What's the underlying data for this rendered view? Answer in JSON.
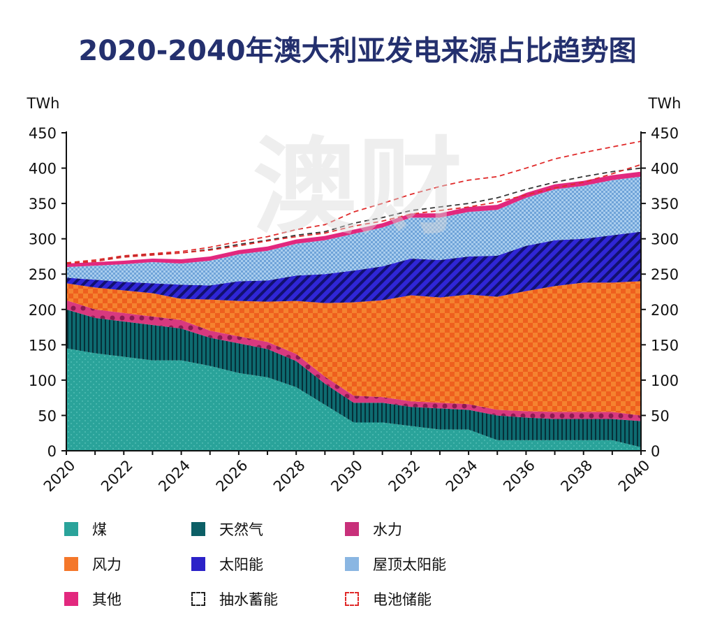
{
  "chart_data": {
    "type": "area",
    "title": "2020-2040年澳大利亚发电来源占比趋势图",
    "y_unit_left": "TWh",
    "y_unit_right": "TWh",
    "ylim": [
      0,
      450
    ],
    "y_ticks": [
      0,
      50,
      100,
      150,
      200,
      250,
      300,
      350,
      400,
      450
    ],
    "x": [
      2020,
      2021,
      2022,
      2023,
      2024,
      2025,
      2026,
      2027,
      2028,
      2029,
      2030,
      2031,
      2032,
      2033,
      2034,
      2035,
      2036,
      2037,
      2038,
      2039,
      2040
    ],
    "x_tick_labels": [
      "2020",
      "2022",
      "2024",
      "2026",
      "2028",
      "2030",
      "2032",
      "2034",
      "2036",
      "2038",
      "2040"
    ],
    "stacked": true,
    "series": [
      {
        "name": "煤",
        "color": "#2aa39a",
        "values": [
          145,
          138,
          133,
          128,
          128,
          120,
          110,
          104,
          90,
          65,
          40,
          40,
          35,
          30,
          30,
          15,
          15,
          15,
          15,
          15,
          5
        ]
      },
      {
        "name": "天然气",
        "color": "#0c5f66",
        "values": [
          55,
          50,
          50,
          50,
          45,
          40,
          42,
          40,
          37,
          30,
          28,
          28,
          27,
          30,
          28,
          35,
          32,
          30,
          30,
          30,
          37
        ]
      },
      {
        "name": "水力",
        "color": "#c8307a",
        "values": [
          13,
          12,
          12,
          12,
          12,
          10,
          10,
          10,
          10,
          10,
          10,
          8,
          8,
          8,
          8,
          8,
          9,
          10,
          10,
          10,
          8
        ]
      },
      {
        "name": "风力",
        "color": "#f4772a",
        "values": [
          24,
          31,
          32,
          33,
          30,
          44,
          50,
          57,
          75,
          104,
          132,
          137,
          150,
          149,
          155,
          160,
          170,
          178,
          183,
          183,
          190
        ]
      },
      {
        "name": "太阳能",
        "color": "#2b22c8",
        "values": [
          8,
          11,
          12,
          14,
          20,
          20,
          28,
          30,
          36,
          41,
          45,
          48,
          52,
          53,
          54,
          58,
          64,
          65,
          62,
          67,
          70
        ]
      },
      {
        "name": "屋顶太阳能",
        "color": "#8ab6e2",
        "values": [
          15,
          20,
          25,
          30,
          30,
          35,
          38,
          42,
          45,
          48,
          52,
          55,
          58,
          60,
          63,
          65,
          68,
          72,
          75,
          78,
          78
        ]
      },
      {
        "name": "其他",
        "color": "#e2287e",
        "values": [
          5,
          5,
          5,
          5,
          6,
          6,
          6,
          6,
          6,
          6,
          6,
          6,
          6,
          6,
          7,
          7,
          7,
          7,
          7,
          7,
          7
        ]
      }
    ],
    "dashed_lines": [
      {
        "name": "抽水蓄能",
        "color": "#333333",
        "values": [
          265,
          268,
          275,
          278,
          280,
          285,
          292,
          298,
          305,
          310,
          322,
          330,
          340,
          345,
          350,
          358,
          370,
          380,
          388,
          395,
          400
        ]
      },
      {
        "name": "电池储能",
        "color": "#e02a2a",
        "values": [
          266,
          270,
          276,
          279,
          282,
          288,
          296,
          303,
          313,
          320,
          338,
          350,
          363,
          374,
          383,
          388,
          400,
          413,
          422,
          430,
          438
        ]
      },
      {
        "name": "电池储能",
        "color": "#e02a2a",
        "values": [
          265,
          268,
          274,
          277,
          280,
          284,
          290,
          297,
          303,
          308,
          318,
          325,
          335,
          340,
          345,
          352,
          362,
          372,
          380,
          392,
          405
        ]
      }
    ],
    "grid": false,
    "legend_position": "bottom"
  },
  "legend": {
    "items": [
      {
        "label": "煤",
        "color": "#2aa39a",
        "style": "fill"
      },
      {
        "label": "天然气",
        "color": "#0c5f66",
        "style": "fill"
      },
      {
        "label": "水力",
        "color": "#c8307a",
        "style": "fill"
      },
      {
        "label": "风力",
        "color": "#f4772a",
        "style": "fill"
      },
      {
        "label": "太阳能",
        "color": "#2b22c8",
        "style": "fill"
      },
      {
        "label": "屋顶太阳能",
        "color": "#8ab6e2",
        "style": "fill"
      },
      {
        "label": "其他",
        "color": "#e2287e",
        "style": "fill"
      },
      {
        "label": "抽水蓄能",
        "color": "#222222",
        "style": "dashed"
      },
      {
        "label": "电池储能",
        "color": "#e02a2a",
        "style": "dashed"
      }
    ]
  },
  "watermark": {
    "text": "澳财"
  }
}
